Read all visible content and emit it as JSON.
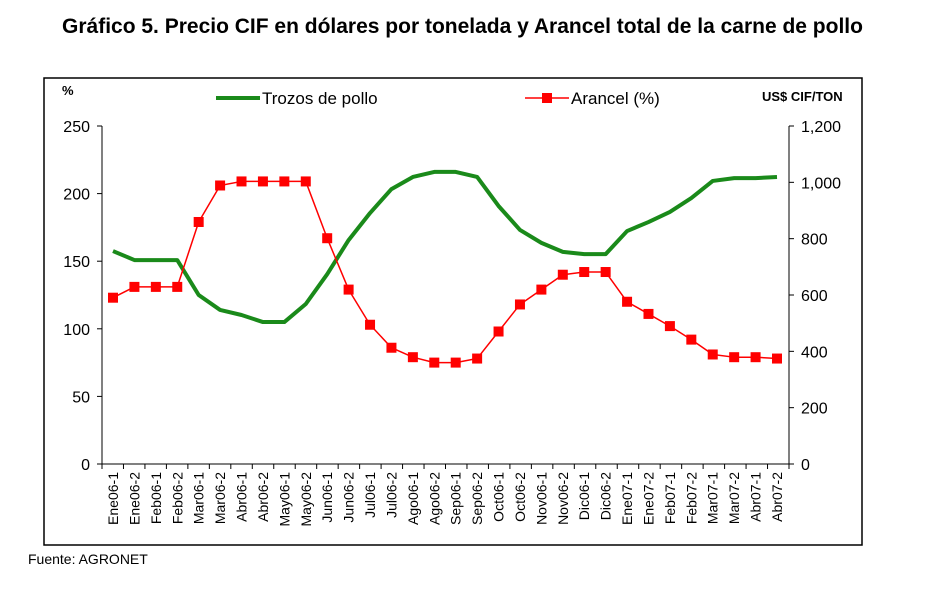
{
  "chart_data": {
    "type": "line",
    "title": "Gráfico 5. Precio CIF en dólares por tonelada y Arancel total de la carne de pollo",
    "source": "Fuente: AGRONET",
    "ylabel_left": "%",
    "ylabel_right": "US$ CIF/TON",
    "ylim_left": [
      0,
      250
    ],
    "ylim_right": [
      0,
      1200
    ],
    "yticks_left": [
      "0",
      "50",
      "100",
      "150",
      "200",
      "250"
    ],
    "yticks_right": [
      "0",
      "200",
      "400",
      "600",
      "800",
      "1,000",
      "1,200"
    ],
    "legend_position": "top",
    "categories": [
      "Ene06-1",
      "Ene06-2",
      "Feb06-1",
      "Feb06-2",
      "Mar06-1",
      "Mar06-2",
      "Abr06-1",
      "Abr06-2",
      "May06-1",
      "May06-2",
      "Jun06-1",
      "Jun06-2",
      "Jul06-1",
      "Jul06-2",
      "Ago06-1",
      "Ago06-2",
      "Sep06-1",
      "Sep06-2",
      "Oct06-1",
      "Oct06-2",
      "Nov06-1",
      "Nov06-2",
      "Dic06-1",
      "Dic06-2",
      "Ene07-1",
      "Ene07-2",
      "Feb07-1",
      "Feb07-2",
      "Mar07-1",
      "Mar07-2",
      "Abr07-1",
      "Abr07-2"
    ],
    "series": [
      {
        "name": "Trozos de pollo",
        "axis": "right",
        "color": "#1a8a1a",
        "values": [
          756,
          724,
          724,
          724,
          600,
          547,
          529,
          504,
          504,
          568,
          674,
          795,
          891,
          976,
          1019,
          1037,
          1037,
          1019,
          916,
          831,
          785,
          753,
          745,
          745,
          827,
          859,
          895,
          944,
          1005,
          1015,
          1015,
          1019
        ]
      },
      {
        "name": "Arancel (%)",
        "axis": "left",
        "color": "#ff0000",
        "values": [
          123,
          131,
          131,
          131,
          179,
          206,
          209,
          209,
          209,
          209,
          167,
          129,
          103,
          86,
          79,
          75,
          75,
          78,
          98,
          118,
          129,
          140,
          142,
          142,
          120,
          111,
          102,
          92,
          81,
          79,
          79,
          78
        ]
      }
    ]
  }
}
